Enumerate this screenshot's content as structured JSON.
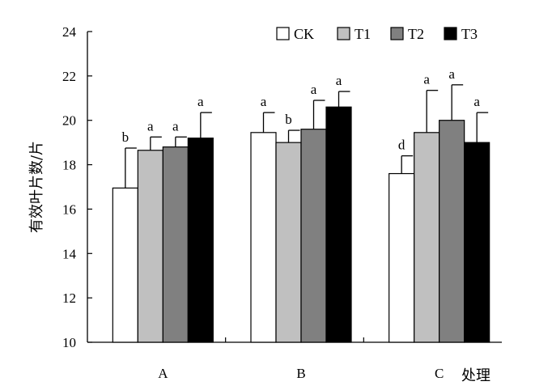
{
  "chart_data": {
    "type": "bar",
    "xlabel": "处理",
    "ylabel": "有效叶片数/片",
    "ylim": [
      10,
      24
    ],
    "yticks": [
      10,
      12,
      14,
      16,
      18,
      20,
      22,
      24
    ],
    "categories": [
      "A",
      "B",
      "C"
    ],
    "legend_position": "top-right",
    "grid": false,
    "series": [
      {
        "name": "CK",
        "color": "#ffffff",
        "values": [
          16.95,
          19.45,
          17.6
        ],
        "errors": [
          1.8,
          0.9,
          0.8
        ],
        "labels": [
          "b",
          "a",
          "d"
        ]
      },
      {
        "name": "T1",
        "color": "#c0c0c0",
        "values": [
          18.65,
          19.0,
          19.45
        ],
        "errors": [
          0.6,
          0.55,
          1.9
        ],
        "labels": [
          "a",
          "b",
          "a"
        ]
      },
      {
        "name": "T2",
        "color": "#808080",
        "values": [
          18.8,
          19.6,
          20.0
        ],
        "errors": [
          0.45,
          1.3,
          1.6
        ],
        "labels": [
          "a",
          "a",
          "a"
        ]
      },
      {
        "name": "T3",
        "color": "#000000",
        "values": [
          19.2,
          20.6,
          19.0
        ],
        "errors": [
          1.15,
          0.7,
          1.35
        ],
        "labels": [
          "a",
          "a",
          "a"
        ]
      }
    ]
  }
}
